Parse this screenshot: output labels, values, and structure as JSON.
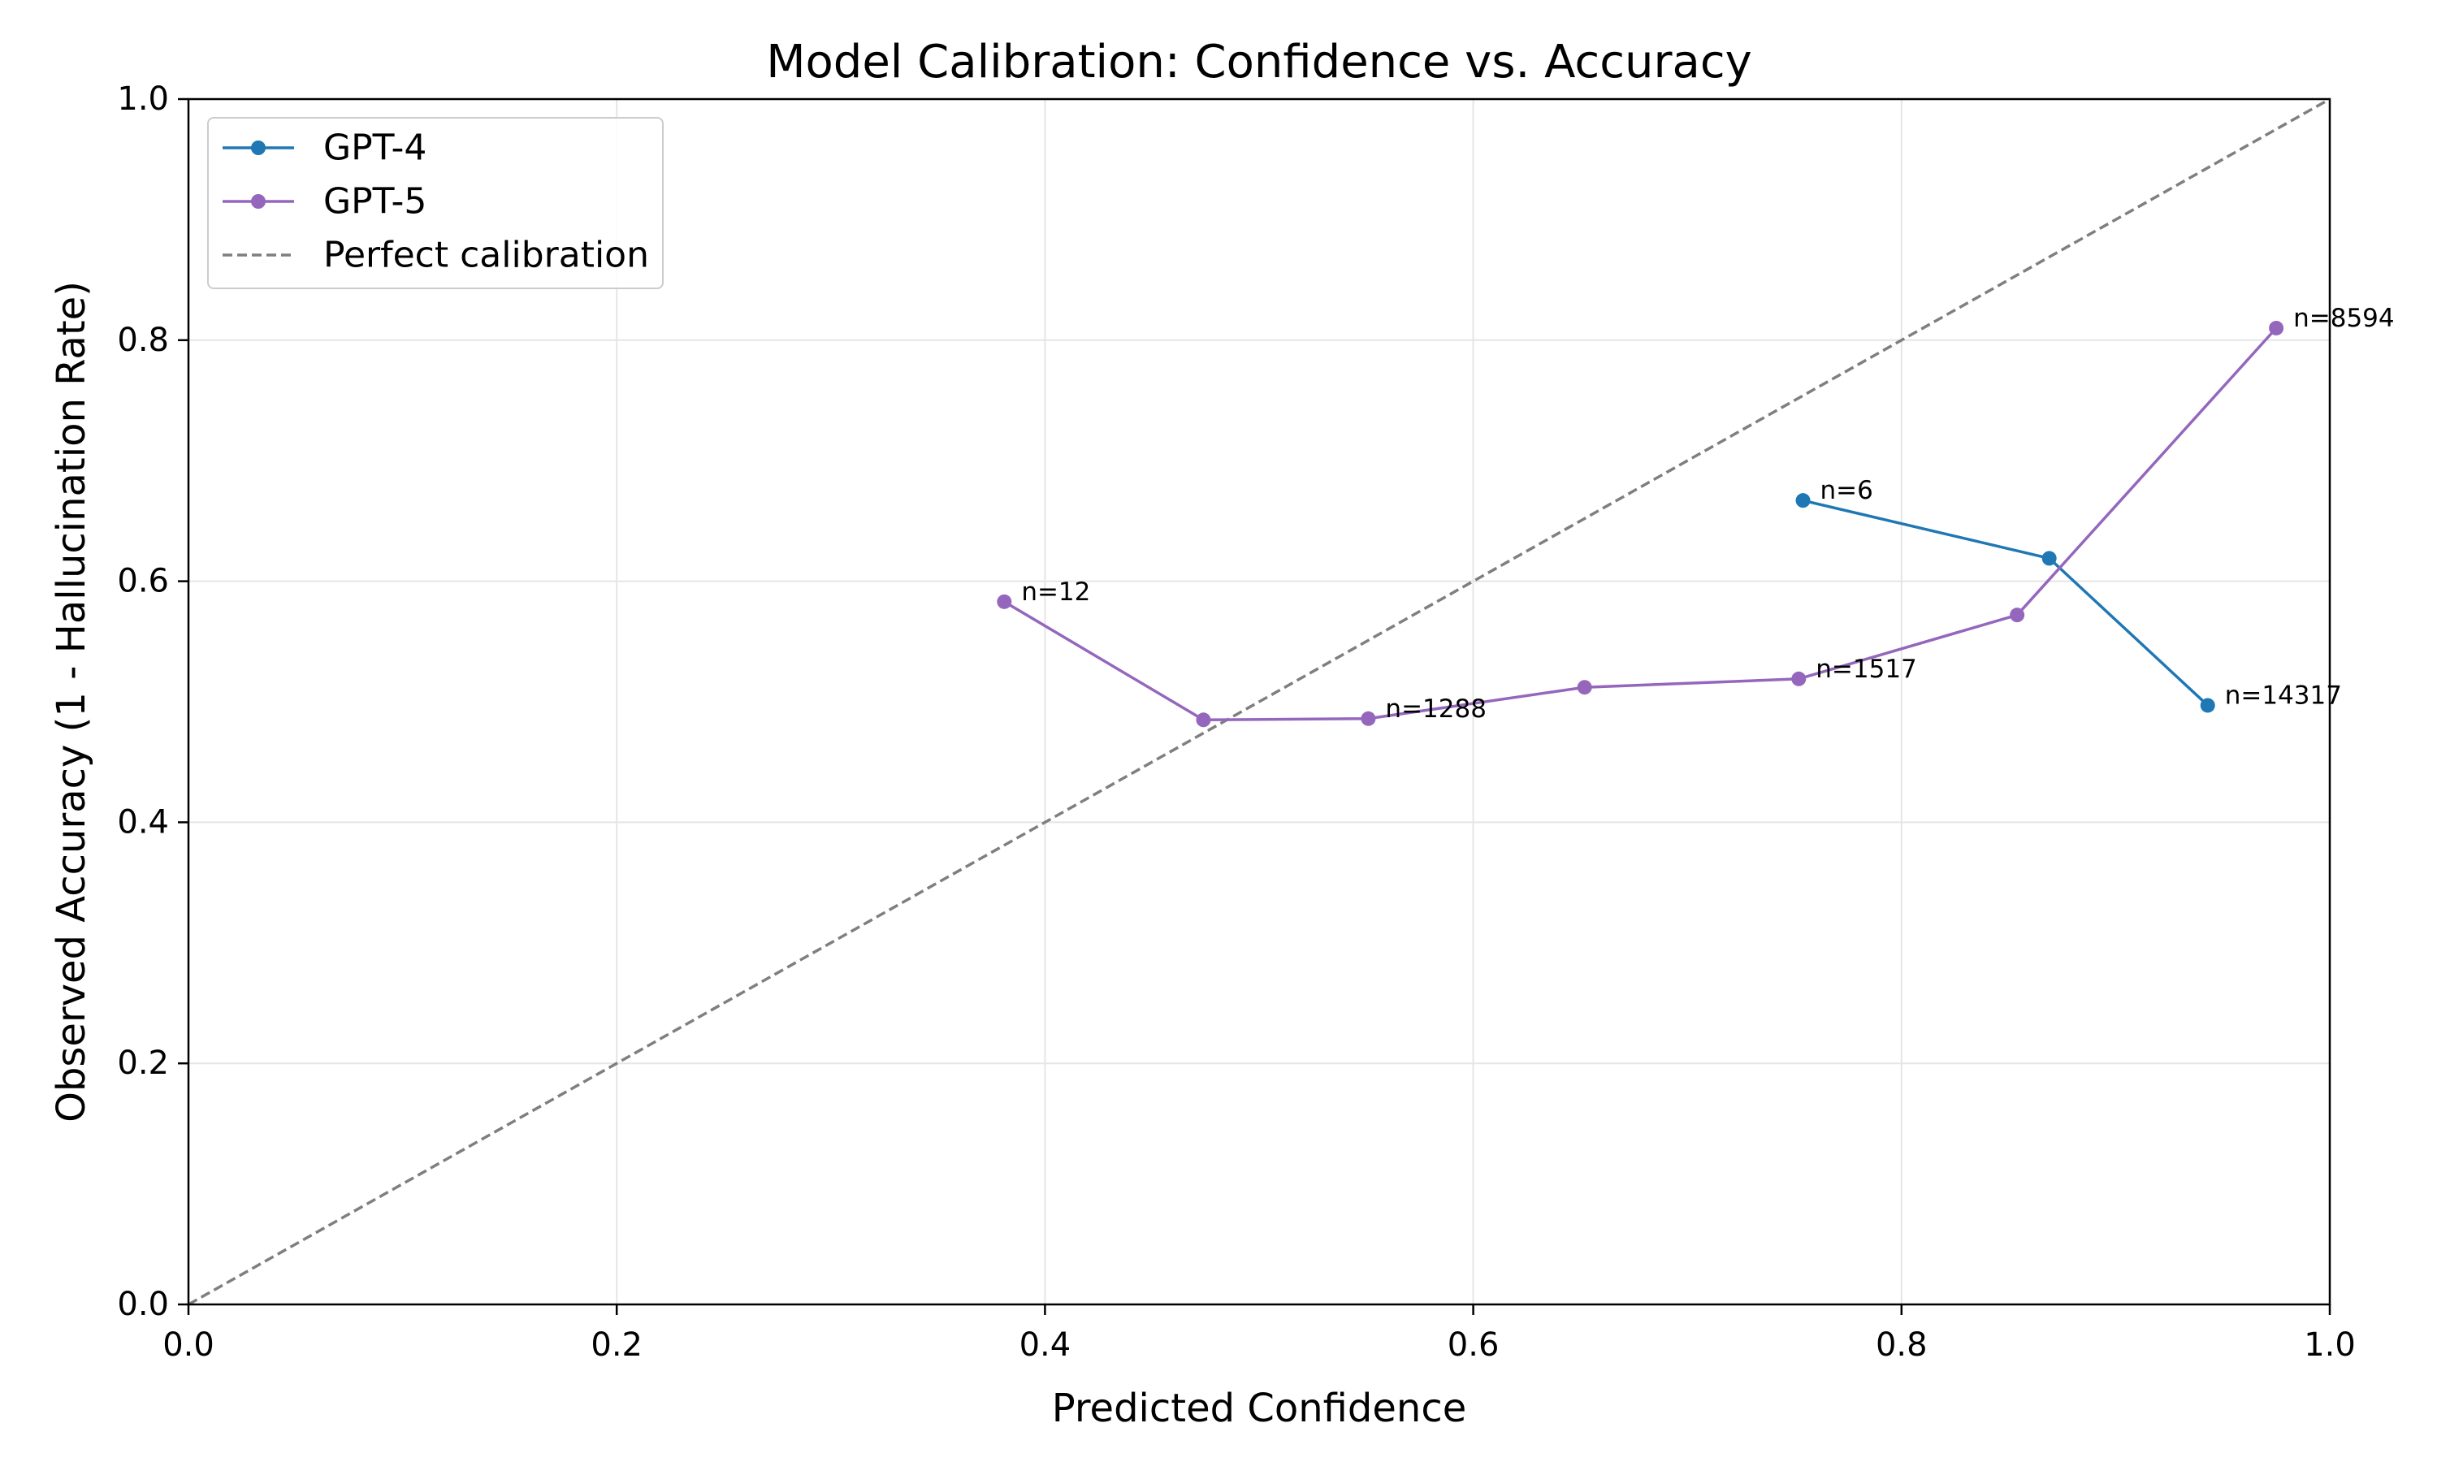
{
  "chart_data": {
    "type": "line",
    "title": "Model Calibration: Confidence vs. Accuracy",
    "xlabel": "Predicted Confidence",
    "ylabel": "Observed Accuracy (1 - Hallucination Rate)",
    "xlim": [
      0.0,
      1.0
    ],
    "ylim": [
      0.0,
      1.0
    ],
    "x_ticks": [
      "0.0",
      "0.2",
      "0.4",
      "0.6",
      "0.8",
      "1.0"
    ],
    "y_ticks": [
      "0.0",
      "0.2",
      "0.4",
      "0.6",
      "0.8",
      "1.0"
    ],
    "grid": true,
    "legend_position": "top-left",
    "series": [
      {
        "name": "GPT-4",
        "color": "#1f77b4",
        "points": [
          {
            "x": 0.754,
            "y": 0.667,
            "label": "n=6"
          },
          {
            "x": 0.869,
            "y": 0.619,
            "label": ""
          },
          {
            "x": 0.943,
            "y": 0.497,
            "label": "n=14317"
          }
        ]
      },
      {
        "name": "GPT-5",
        "color": "#9467bd",
        "points": [
          {
            "x": 0.381,
            "y": 0.583,
            "label": "n=12"
          },
          {
            "x": 0.474,
            "y": 0.485,
            "label": ""
          },
          {
            "x": 0.551,
            "y": 0.486,
            "label": "n=1288"
          },
          {
            "x": 0.652,
            "y": 0.512,
            "label": ""
          },
          {
            "x": 0.752,
            "y": 0.519,
            "label": "n=1517"
          },
          {
            "x": 0.854,
            "y": 0.572,
            "label": ""
          },
          {
            "x": 0.975,
            "y": 0.81,
            "label": "n=8594"
          }
        ]
      }
    ],
    "reference_line": {
      "name": "Perfect calibration",
      "color": "#7f7f7f",
      "style": "dashed",
      "x": [
        0.0,
        1.0
      ],
      "y": [
        0.0,
        1.0
      ]
    }
  }
}
